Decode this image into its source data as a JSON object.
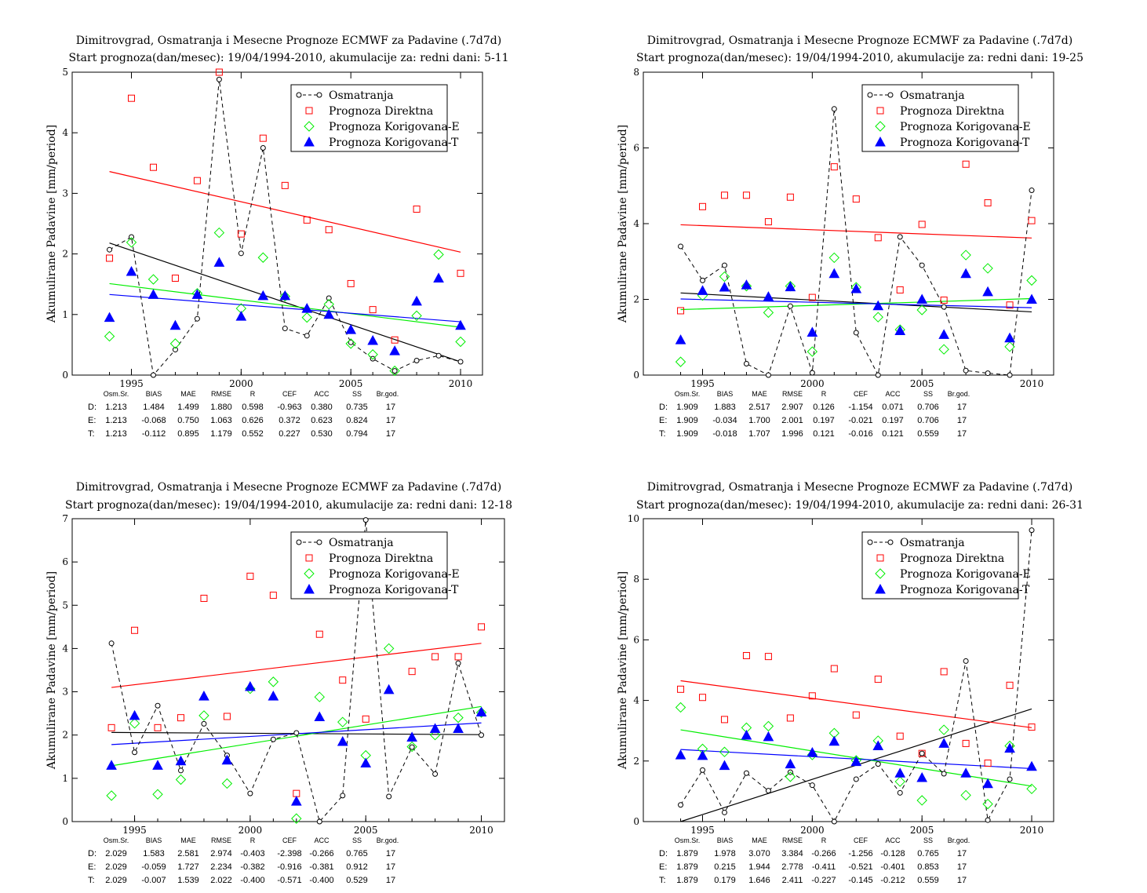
{
  "colors": {
    "obs": "#000000",
    "direct": "#ff0000",
    "corr_e": "#00ee00",
    "corr_t": "#0000ff"
  },
  "stats_header": [
    "Osm.Sr.",
    "BIAS",
    "MAE",
    "RMSE",
    "R",
    "CEF",
    "ACC",
    "SS",
    "Br.god."
  ],
  "chart_data": [
    {
      "type": "scatter",
      "title": "Dimitrovgrad, Osmatranja i Mesecne Prognoze ECMWF za Padavine (.7d7d)",
      "subtitle": "Start prognoza(dan/mesec): 19/04/1994-2010, akumulacije za: redni dani: 5-11",
      "ylabel": "Akumulirane Padavine [mm/period]",
      "xlim": [
        1992.3,
        2011.0
      ],
      "ylim": [
        0,
        5
      ],
      "xticks": [
        1995,
        2000,
        2005,
        2010
      ],
      "yticks": [
        0,
        1,
        2,
        3,
        4,
        5
      ],
      "x": [
        1994,
        1995,
        1996,
        1997,
        1998,
        1999,
        2000,
        2001,
        2002,
        2003,
        2004,
        2005,
        2006,
        2007,
        2008,
        2009,
        2010
      ],
      "series": [
        {
          "name": "Osmatranja",
          "marker": "circle",
          "values": [
            2.07,
            2.28,
            0.0,
            0.42,
            0.93,
            4.88,
            2.01,
            3.75,
            0.77,
            0.65,
            1.27,
            0.54,
            0.27,
            0.07,
            0.24,
            0.32,
            0.22
          ]
        },
        {
          "name": "Prognoza Direktna",
          "marker": "square",
          "values": [
            1.93,
            4.57,
            3.43,
            1.6,
            3.21,
            5.0,
            2.33,
            3.91,
            3.13,
            2.56,
            2.4,
            1.51,
            1.08,
            0.58,
            2.74,
            null,
            1.68
          ]
        },
        {
          "name": "Prognoza Korigovana-E",
          "marker": "diamond",
          "values": [
            0.64,
            2.19,
            1.58,
            0.52,
            1.35,
            2.35,
            1.1,
            1.94,
            1.3,
            0.95,
            1.17,
            0.52,
            0.34,
            0.07,
            0.98,
            1.99,
            0.55
          ]
        },
        {
          "name": "Prognoza Korigovana-T",
          "marker": "triangle",
          "values": [
            0.95,
            1.71,
            1.33,
            0.82,
            1.33,
            1.86,
            0.97,
            1.31,
            1.31,
            1.1,
            1.0,
            0.75,
            0.57,
            0.4,
            1.22,
            1.6,
            0.82
          ]
        }
      ],
      "trends": [
        {
          "series": "Osmatranja",
          "y_start": 2.18,
          "y_end": 0.22
        },
        {
          "series": "Prognoza Direktna",
          "y_start": 3.36,
          "y_end": 2.03
        },
        {
          "series": "Prognoza Korigovana-E",
          "y_start": 1.51,
          "y_end": 0.79
        },
        {
          "series": "Prognoza Korigovana-T",
          "y_start": 1.33,
          "y_end": 0.88
        }
      ],
      "legend": "top-right",
      "stats": [
        {
          "label": "D:",
          "values": [
            "1.213",
            "1.484",
            "1.499",
            "1.880",
            "0.598",
            "-0.963",
            "0.380",
            "0.735",
            "17"
          ]
        },
        {
          "label": "E:",
          "values": [
            "1.213",
            "-0.068",
            "0.750",
            "1.063",
            "0.626",
            "0.372",
            "0.623",
            "0.824",
            "17"
          ]
        },
        {
          "label": "T:",
          "values": [
            "1.213",
            "-0.112",
            "0.895",
            "1.179",
            "0.552",
            "0.227",
            "0.530",
            "0.794",
            "17"
          ]
        }
      ]
    },
    {
      "type": "scatter",
      "title": "Dimitrovgrad, Osmatranja i Mesecne Prognoze ECMWF za Padavine (.7d7d)",
      "subtitle": "Start prognoza(dan/mesec): 19/04/1994-2010, akumulacije za: redni dani: 19-25",
      "ylabel": "Akumulirane Padavine [mm/period]",
      "xlim": [
        1992.3,
        2011.0
      ],
      "ylim": [
        0,
        8
      ],
      "xticks": [
        1995,
        2000,
        2005,
        2010
      ],
      "yticks": [
        0,
        2,
        4,
        6,
        8
      ],
      "x": [
        1994,
        1995,
        1996,
        1997,
        1998,
        1999,
        2000,
        2001,
        2002,
        2003,
        2004,
        2005,
        2006,
        2007,
        2008,
        2009,
        2010
      ],
      "series": [
        {
          "name": "Osmatranja",
          "marker": "circle",
          "values": [
            3.4,
            2.5,
            2.9,
            0.3,
            0.0,
            1.82,
            0.06,
            7.03,
            1.12,
            0.0,
            3.65,
            2.9,
            1.8,
            0.12,
            0.05,
            0.0,
            4.88
          ]
        },
        {
          "name": "Prognoza Direktna",
          "marker": "square",
          "values": [
            1.7,
            4.45,
            4.75,
            4.75,
            4.05,
            4.7,
            2.05,
            5.5,
            4.65,
            3.63,
            2.25,
            3.98,
            1.98,
            5.57,
            4.55,
            1.85,
            4.08
          ]
        },
        {
          "name": "Prognoza Korigovana-E",
          "marker": "diamond",
          "values": [
            0.35,
            2.1,
            2.6,
            2.35,
            1.65,
            2.35,
            0.62,
            3.1,
            2.32,
            1.53,
            1.2,
            1.72,
            0.68,
            3.17,
            2.82,
            0.75,
            2.5
          ]
        },
        {
          "name": "Prognoza Korigovana-T",
          "marker": "triangle",
          "values": [
            0.93,
            2.23,
            2.32,
            2.38,
            2.07,
            2.33,
            1.13,
            2.68,
            2.28,
            1.83,
            1.17,
            2.0,
            1.07,
            2.68,
            2.2,
            0.98,
            2.0
          ]
        }
      ],
      "trends": [
        {
          "series": "Osmatranja",
          "y_start": 2.17,
          "y_end": 1.67
        },
        {
          "series": "Prognoza Direktna",
          "y_start": 3.97,
          "y_end": 3.62
        },
        {
          "series": "Prognoza Korigovana-E",
          "y_start": 1.73,
          "y_end": 2.02
        },
        {
          "series": "Prognoza Korigovana-T",
          "y_start": 2.01,
          "y_end": 1.78
        }
      ],
      "legend": "top-right",
      "stats": [
        {
          "label": "D:",
          "values": [
            "1.909",
            "1.883",
            "2.517",
            "2.907",
            "0.126",
            "-1.154",
            "0.071",
            "0.706",
            "17"
          ]
        },
        {
          "label": "E:",
          "values": [
            "1.909",
            "-0.034",
            "1.700",
            "2.001",
            "0.197",
            "-0.021",
            "0.197",
            "0.706",
            "17"
          ]
        },
        {
          "label": "T:",
          "values": [
            "1.909",
            "-0.018",
            "1.707",
            "1.996",
            "0.121",
            "-0.016",
            "0.121",
            "0.559",
            "17"
          ]
        }
      ]
    },
    {
      "type": "scatter",
      "title": "Dimitrovgrad, Osmatranja i Mesecne Prognoze ECMWF za Padavine (.7d7d)",
      "subtitle": "Start prognoza(dan/mesec): 19/04/1994-2010, akumulacije za: redni dani: 12-18",
      "ylabel": "Akumulirane Padavine [mm/period]",
      "xlim": [
        1992.3,
        2011.0
      ],
      "ylim": [
        0,
        7
      ],
      "xticks": [
        1995,
        2000,
        2005,
        2010
      ],
      "yticks": [
        0,
        1,
        2,
        3,
        4,
        5,
        6,
        7
      ],
      "x": [
        1994,
        1995,
        1996,
        1997,
        1998,
        1999,
        2000,
        2001,
        2002,
        2003,
        2004,
        2005,
        2006,
        2007,
        2008,
        2009,
        2010
      ],
      "series": [
        {
          "name": "Osmatranja",
          "marker": "circle",
          "values": [
            4.12,
            1.6,
            2.68,
            1.18,
            2.26,
            1.53,
            0.65,
            1.9,
            2.05,
            0.0,
            0.6,
            6.97,
            0.58,
            1.72,
            1.1,
            3.66,
            2.0
          ]
        },
        {
          "name": "Prognoza Direktna",
          "marker": "square",
          "values": [
            2.17,
            4.42,
            2.17,
            2.4,
            5.16,
            2.43,
            5.67,
            5.23,
            0.65,
            4.33,
            3.27,
            2.37,
            null,
            3.47,
            3.81,
            3.81,
            4.5
          ]
        },
        {
          "name": "Prognoza Korigovana-E",
          "marker": "diamond",
          "values": [
            0.6,
            2.27,
            0.63,
            0.97,
            2.45,
            0.88,
            3.07,
            3.23,
            0.07,
            2.88,
            2.3,
            1.53,
            4.0,
            1.73,
            2.0,
            2.4,
            2.52
          ]
        },
        {
          "name": "Prognoza Korigovana-T",
          "marker": "triangle",
          "values": [
            1.3,
            2.45,
            1.3,
            1.4,
            2.9,
            1.42,
            3.12,
            2.9,
            0.47,
            2.42,
            1.85,
            1.35,
            3.05,
            1.95,
            2.15,
            2.15,
            2.53
          ]
        }
      ],
      "trends": [
        {
          "series": "Osmatranja",
          "y_start": 2.06,
          "y_end": 2.01
        },
        {
          "series": "Prognoza Direktna",
          "y_start": 3.1,
          "y_end": 4.12
        },
        {
          "series": "Prognoza Korigovana-E",
          "y_start": 1.29,
          "y_end": 2.66
        },
        {
          "series": "Prognoza Korigovana-T",
          "y_start": 1.78,
          "y_end": 2.28
        }
      ],
      "legend": "top-right",
      "stats": [
        {
          "label": "D:",
          "values": [
            "2.029",
            "1.583",
            "2.581",
            "2.974",
            "-0.403",
            "-2.398",
            "-0.266",
            "0.765",
            "17"
          ]
        },
        {
          "label": "E:",
          "values": [
            "2.029",
            "-0.059",
            "1.727",
            "2.234",
            "-0.382",
            "-0.916",
            "-0.381",
            "0.912",
            "17"
          ]
        },
        {
          "label": "T:",
          "values": [
            "2.029",
            "-0.007",
            "1.539",
            "2.022",
            "-0.400",
            "-0.571",
            "-0.400",
            "0.529",
            "17"
          ]
        }
      ]
    },
    {
      "type": "scatter",
      "title": "Dimitrovgrad, Osmatranja i Mesecne Prognoze ECMWF za Padavine (.7d7d)",
      "subtitle": "Start prognoza(dan/mesec): 19/04/1994-2010, akumulacije za: redni dani: 26-31",
      "ylabel": "Akumulirane Padavine [mm/period]",
      "xlim": [
        1992.3,
        2011.0
      ],
      "ylim": [
        0,
        10
      ],
      "xticks": [
        1995,
        2000,
        2005,
        2010
      ],
      "yticks": [
        0,
        2,
        4,
        6,
        8,
        10
      ],
      "x": [
        1994,
        1995,
        1996,
        1997,
        1998,
        1999,
        2000,
        2001,
        2002,
        2003,
        2004,
        2005,
        2006,
        2007,
        2008,
        2009,
        2010
      ],
      "series": [
        {
          "name": "Osmatranja",
          "marker": "circle",
          "values": [
            0.55,
            1.7,
            0.3,
            1.6,
            1.02,
            1.63,
            1.2,
            0.0,
            1.4,
            1.9,
            0.95,
            2.25,
            1.58,
            5.3,
            0.05,
            1.4,
            9.62
          ]
        },
        {
          "name": "Prognoza Direktna",
          "marker": "square",
          "values": [
            4.37,
            4.1,
            3.37,
            5.48,
            5.45,
            3.42,
            4.15,
            5.05,
            3.52,
            4.7,
            2.82,
            2.25,
            4.95,
            2.58,
            1.93,
            4.5,
            3.12
          ]
        },
        {
          "name": "Prognoza Korigovana-E",
          "marker": "diamond",
          "values": [
            3.77,
            2.4,
            2.3,
            3.1,
            3.15,
            1.48,
            2.2,
            2.92,
            2.02,
            2.67,
            1.32,
            0.7,
            3.03,
            0.87,
            0.58,
            2.5,
            1.08
          ]
        },
        {
          "name": "Prognoza Korigovana-T",
          "marker": "triangle",
          "values": [
            2.2,
            2.18,
            1.85,
            2.85,
            2.8,
            1.9,
            2.28,
            2.65,
            1.98,
            2.5,
            1.6,
            1.45,
            2.58,
            1.6,
            1.25,
            2.42,
            1.82
          ]
        }
      ],
      "trends": [
        {
          "series": "Osmatranja",
          "y_start": 0.0,
          "y_end": 3.72
        },
        {
          "series": "Prognoza Direktna",
          "y_start": 4.65,
          "y_end": 3.1
        },
        {
          "series": "Prognoza Korigovana-E",
          "y_start": 3.03,
          "y_end": 1.17
        },
        {
          "series": "Prognoza Korigovana-T",
          "y_start": 2.38,
          "y_end": 1.75
        }
      ],
      "legend": "top-right",
      "stats": [
        {
          "label": "D:",
          "values": [
            "1.879",
            "1.978",
            "3.070",
            "3.384",
            "-0.266",
            "-1.256",
            "-0.128",
            "0.765",
            "17"
          ]
        },
        {
          "label": "E:",
          "values": [
            "1.879",
            "0.215",
            "1.944",
            "2.778",
            "-0.411",
            "-0.521",
            "-0.401",
            "0.853",
            "17"
          ]
        },
        {
          "label": "T:",
          "values": [
            "1.879",
            "0.179",
            "1.646",
            "2.411",
            "-0.227",
            "-0.145",
            "-0.212",
            "0.559",
            "17"
          ]
        }
      ]
    }
  ]
}
